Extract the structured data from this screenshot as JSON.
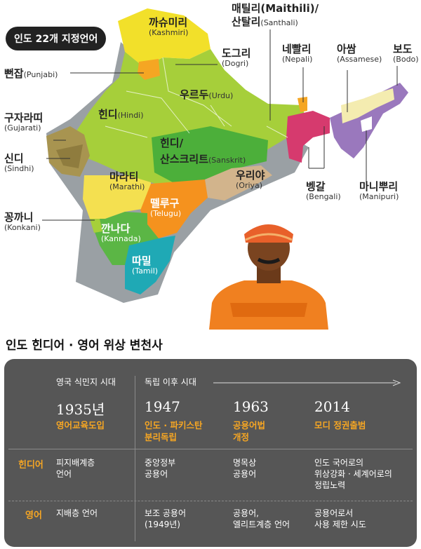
{
  "map": {
    "title": "인도 22개 지정언어",
    "languages": [
      {
        "ko": "까슈미리",
        "en": "(Kashmiri)"
      },
      {
        "ko": "매틸리(Maithili)/",
        "en": ""
      },
      {
        "ko": "산탈리",
        "en": "(Santhali)"
      },
      {
        "ko": "도그리",
        "en": "(Dogri)"
      },
      {
        "ko": "네빨리",
        "en": "(Nepali)"
      },
      {
        "ko": "아쌈",
        "en": "(Assamese)"
      },
      {
        "ko": "보도",
        "en": "(Bodo)"
      },
      {
        "ko": "뻔잡",
        "en": "(Punjabi)"
      },
      {
        "ko": "우르두",
        "en": "(Urdu)"
      },
      {
        "ko": "힌디",
        "en": "(Hindi)"
      },
      {
        "ko": "구자라띠",
        "en": "(Gujarati)"
      },
      {
        "ko": "신디",
        "en": "(Sindhi)"
      },
      {
        "ko": "힌디/",
        "en": ""
      },
      {
        "ko": "산스크리트",
        "en": "(Sanskrit)"
      },
      {
        "ko": "우리야",
        "en": "(Oriya)"
      },
      {
        "ko": "마라티",
        "en": "(Marathi)"
      },
      {
        "ko": "벵갈",
        "en": "(Bengali)"
      },
      {
        "ko": "마니뿌리",
        "en": "(Manipuri)"
      },
      {
        "ko": "뗄루구",
        "en": "(Telugu)"
      },
      {
        "ko": "꽁까니",
        "en": "(Konkani)"
      },
      {
        "ko": "깐나다",
        "en": "(Kannada)"
      },
      {
        "ko": "따밀",
        "en": "(Tamil)"
      }
    ]
  },
  "timeline": {
    "title": "인도 힌디어 · 영어 위상 변천사",
    "eras": [
      "영국 식민지 시대",
      "독립 이후 시대"
    ],
    "columns": [
      {
        "year": "1935년",
        "event": [
          "영어교육도입"
        ]
      },
      {
        "year": "1947",
        "event": [
          "인도 · 파키스탄",
          "분리독립"
        ]
      },
      {
        "year": "1963",
        "event": [
          "공용어법",
          "개정"
        ]
      },
      {
        "year": "2014",
        "event": [
          "모디 정권출범"
        ]
      }
    ],
    "rows": [
      {
        "label": "힌디어",
        "cells": [
          [
            "피지배계층",
            "언어"
          ],
          [
            "중앙정부",
            "공용어"
          ],
          [
            "명목상",
            "공용어"
          ],
          [
            "인도 국어로의",
            "위상강화 · 세계어로의",
            "정립노력"
          ]
        ]
      },
      {
        "label": "영어",
        "cells": [
          [
            "지배층 언어"
          ],
          [
            "보조 공용어",
            "(1949년)"
          ],
          [
            "공용어,",
            "엘리트계층 언어"
          ],
          [
            "공용어로서",
            "사용 제한 시도"
          ]
        ]
      }
    ]
  }
}
